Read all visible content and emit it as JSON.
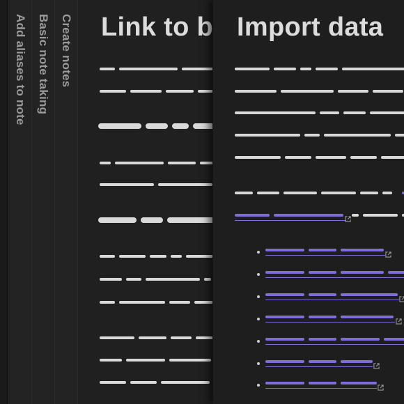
{
  "stacked_tabs": [
    {
      "title": "Create notes"
    },
    {
      "title": "Basic note taking"
    },
    {
      "title": "Add aliases to note"
    }
  ],
  "pane_link": {
    "title": "Link to b"
  },
  "pane_import": {
    "title": "Import data"
  },
  "colors": {
    "background": "#1e1e1e",
    "text_placeholder": "#d9d9d9",
    "link_accent": "#7e6fd8",
    "spine_title": "#9a9a9a"
  },
  "icons": {
    "external_link": "external-link-icon"
  }
}
